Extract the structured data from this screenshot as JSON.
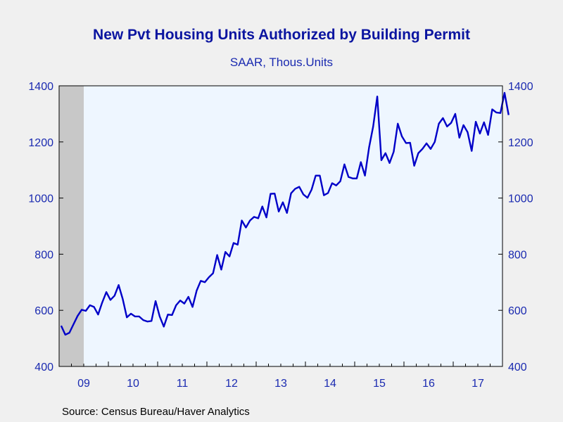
{
  "chart_data": {
    "type": "line",
    "title": "New Pvt Housing Units Authorized by Building Permit",
    "subtitle": "SAAR, Thous.Units",
    "source": "Source:  Census Bureau/Haver Analytics",
    "ylim": [
      400,
      1400
    ],
    "y_ticks": [
      400,
      600,
      800,
      1000,
      1200,
      1400
    ],
    "y_tick_labels": [
      "400",
      "600",
      "800",
      "1000",
      "1200",
      "1400"
    ],
    "x_tick_labels": [
      "09",
      "10",
      "11",
      "12",
      "13",
      "14",
      "15",
      "16",
      "17"
    ],
    "x_tick_years": [
      2009,
      2010,
      2011,
      2012,
      2013,
      2014,
      2015,
      2016,
      2017
    ],
    "xlim": [
      "2009-01",
      "2017-12"
    ],
    "recession_shade": [
      "2009-01",
      "2009-06"
    ],
    "colors": {
      "line": "#0000c8",
      "axis_text": "#1a2ab0",
      "plot_bg": "#eef6ff",
      "recession": "#c8c8c8"
    },
    "series": [
      {
        "start": "2009-01",
        "values": [
          545,
          513,
          520,
          550,
          580,
          602,
          598,
          618,
          612,
          585,
          628,
          665,
          637,
          652,
          690,
          640,
          575,
          588,
          578,
          578,
          565,
          560,
          562,
          633,
          578,
          542,
          585,
          583,
          618,
          635,
          624,
          648,
          612,
          670,
          705,
          700,
          718,
          732,
          797,
          745,
          808,
          792,
          840,
          834,
          920,
          895,
          920,
          933,
          928,
          970,
          931,
          1015,
          1016,
          952,
          985,
          947,
          1017,
          1033,
          1040,
          1013,
          1001,
          1030,
          1080,
          1080,
          1010,
          1018,
          1053,
          1045,
          1060,
          1120,
          1075,
          1070,
          1070,
          1128,
          1080,
          1180,
          1255,
          1362,
          1135,
          1160,
          1125,
          1165,
          1265,
          1220,
          1196,
          1197,
          1115,
          1160,
          1175,
          1195,
          1175,
          1200,
          1265,
          1285,
          1255,
          1268,
          1300,
          1215,
          1260,
          1235,
          1168,
          1272,
          1230,
          1270,
          1225,
          1316,
          1305,
          1303,
          1375,
          1296
        ]
      }
    ]
  }
}
